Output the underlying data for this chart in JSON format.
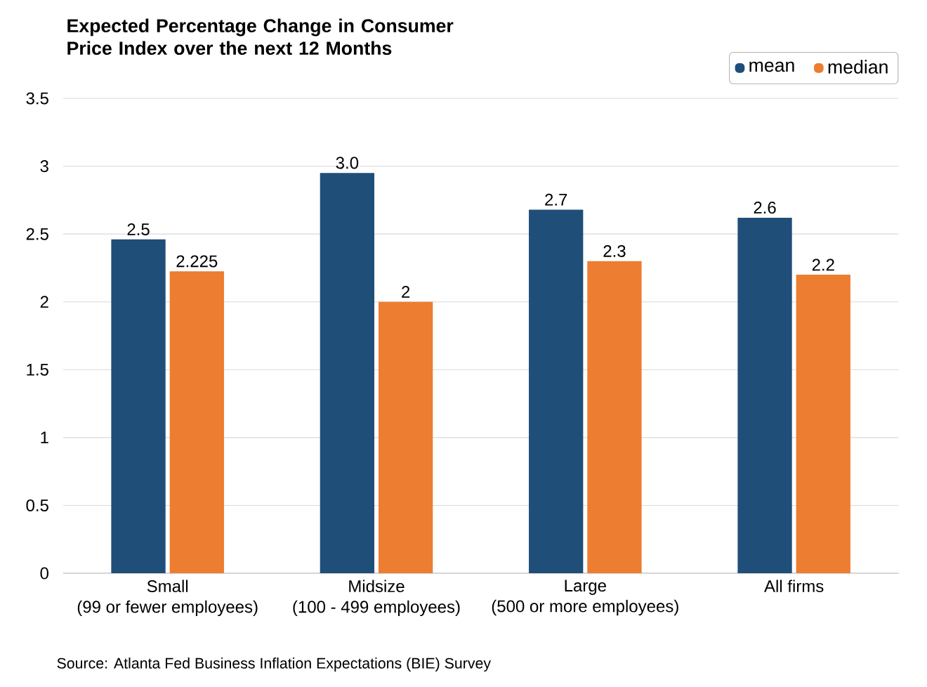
{
  "chart_data": {
    "type": "bar",
    "title": "Expected Percentage Change in Consumer Price Index over the next 12 Months",
    "categories": [
      "Small\n(99 or fewer employees)",
      "Midsize\n(100 - 499 employees)",
      "Large\n(500 or more employees)",
      "All firms"
    ],
    "series": [
      {
        "name": "mean",
        "color": "#1f4e79",
        "values": [
          2.46,
          2.95,
          2.68,
          2.62
        ],
        "value_labels": [
          "2.5",
          "3.0",
          "2.7",
          "2.6"
        ]
      },
      {
        "name": "median",
        "color": "#ed7d31",
        "values": [
          2.225,
          2,
          2.3,
          2.2
        ],
        "value_labels": [
          "2.225",
          "2",
          "2.3",
          "2.2"
        ]
      }
    ],
    "ylim": [
      0,
      3.5
    ],
    "yticks": [
      0,
      0.5,
      1,
      1.5,
      2,
      2.5,
      3,
      3.5
    ],
    "grid": "y",
    "legend": "top right",
    "annotations": [
      "Source: Atlanta Fed Business Inflation Expectations (BIE) Survey"
    ]
  }
}
